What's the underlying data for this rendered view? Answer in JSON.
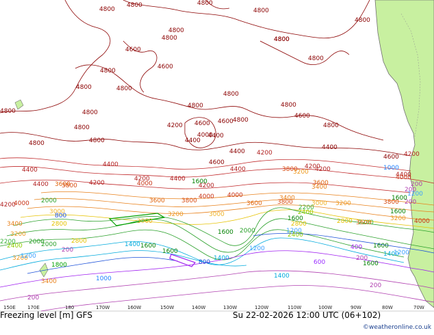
{
  "map": {
    "longitude_labels": [
      "150E",
      "170E",
      "180",
      "170W",
      "160W",
      "150W",
      "140W",
      "130W",
      "120W",
      "110W",
      "100W",
      "90W",
      "80W",
      "70W"
    ],
    "contour_labels": [
      {
        "text": "4800",
        "color": "#8b0000"
      },
      {
        "text": "4800",
        "color": "#8b0000"
      },
      {
        "text": "4800",
        "color": "#8b0000"
      },
      {
        "text": "4800",
        "color": "#8b0000"
      },
      {
        "text": "4800",
        "color": "#8b0000"
      },
      {
        "text": "4800",
        "color": "#8b0000"
      },
      {
        "text": "4800",
        "color": "#8b0000"
      },
      {
        "text": "4800",
        "color": "#8b0000"
      },
      {
        "text": "4800",
        "color": "#8b0000"
      },
      {
        "text": "4800",
        "color": "#8b0000"
      },
      {
        "text": "4800",
        "color": "#8b0000"
      },
      {
        "text": "4800",
        "color": "#8b0000"
      },
      {
        "text": "4600",
        "color": "#8b0000"
      },
      {
        "text": "4600",
        "color": "#8b0000"
      },
      {
        "text": "4800",
        "color": "#8b0000"
      },
      {
        "text": "4800",
        "color": "#8b0000"
      },
      {
        "text": "4800",
        "color": "#8b0000"
      },
      {
        "text": "4800",
        "color": "#8b0000"
      },
      {
        "text": "4800",
        "color": "#8b0000"
      },
      {
        "text": "4800",
        "color": "#8b0000"
      },
      {
        "text": "4800",
        "color": "#8b0000"
      },
      {
        "text": "4800",
        "color": "#8b0000"
      },
      {
        "text": "4600",
        "color": "#8b0000"
      },
      {
        "text": "4800",
        "color": "#8b0000"
      },
      {
        "text": "4800",
        "color": "#8b0000"
      },
      {
        "text": "4200",
        "color": "#8b0000"
      },
      {
        "text": "4400",
        "color": "#8b0000"
      },
      {
        "text": "4800",
        "color": "#8b0000"
      },
      {
        "text": "4400",
        "color": "#8b0000"
      },
      {
        "text": "4600",
        "color": "#8b0000"
      },
      {
        "text": "4000",
        "color": "#8b0000"
      },
      {
        "text": "4400",
        "color": "#8b0000"
      },
      {
        "text": "4600",
        "color": "#8b0000"
      },
      {
        "text": "4400",
        "color": "#8b0000"
      },
      {
        "text": "4600",
        "color": "#8b0000"
      },
      {
        "text": "4400",
        "color": "#b22222"
      },
      {
        "text": "4400",
        "color": "#b22222"
      },
      {
        "text": "4200",
        "color": "#b22222"
      },
      {
        "text": "4200",
        "color": "#b22222"
      },
      {
        "text": "4400",
        "color": "#b22222"
      },
      {
        "text": "4200",
        "color": "#b22222"
      },
      {
        "text": "4200",
        "color": "#b22222"
      },
      {
        "text": "4600",
        "color": "#8b0000"
      },
      {
        "text": "4400",
        "color": "#b22222"
      },
      {
        "text": "4200",
        "color": "#b22222"
      },
      {
        "text": "4000",
        "color": "#c83214"
      },
      {
        "text": "3800",
        "color": "#d84a10"
      },
      {
        "text": "4400",
        "color": "#b22222"
      },
      {
        "text": "4200",
        "color": "#b22222"
      },
      {
        "text": "4400",
        "color": "#b22222"
      },
      {
        "text": "4000",
        "color": "#c83214"
      },
      {
        "text": "4000",
        "color": "#c83214"
      },
      {
        "text": "4200",
        "color": "#b22222"
      },
      {
        "text": "4000",
        "color": "#c83214"
      },
      {
        "text": "3600",
        "color": "#e0640c"
      },
      {
        "text": "4000",
        "color": "#c83214"
      },
      {
        "text": "3800",
        "color": "#d84a10"
      },
      {
        "text": "3600",
        "color": "#e0640c"
      },
      {
        "text": "3800",
        "color": "#d84a10"
      },
      {
        "text": "3200",
        "color": "#ee9a20"
      },
      {
        "text": "3800",
        "color": "#d84a10"
      },
      {
        "text": "3600",
        "color": "#e0640c"
      },
      {
        "text": "3400",
        "color": "#e8801a"
      },
      {
        "text": "3800",
        "color": "#d84a10"
      },
      {
        "text": "3600",
        "color": "#e0640c"
      },
      {
        "text": "3200",
        "color": "#ee9a20"
      },
      {
        "text": "3000",
        "color": "#f0b429"
      },
      {
        "text": "3400",
        "color": "#e8801a"
      },
      {
        "text": "3200",
        "color": "#ee9a20"
      },
      {
        "text": "3000",
        "color": "#f0b429"
      },
      {
        "text": "3400",
        "color": "#e8801a"
      },
      {
        "text": "3200",
        "color": "#ee9a20"
      },
      {
        "text": "2800",
        "color": "#e6c200"
      },
      {
        "text": "2400",
        "color": "#8fce00"
      },
      {
        "text": "2200",
        "color": "#3cb43c"
      },
      {
        "text": "2000",
        "color": "#2aa02a"
      },
      {
        "text": "3000",
        "color": "#f0b429"
      },
      {
        "text": "2800",
        "color": "#e6c200"
      },
      {
        "text": "2400",
        "color": "#8fce00"
      },
      {
        "text": "1600",
        "color": "#008000"
      },
      {
        "text": "3200",
        "color": "#ee9a20"
      },
      {
        "text": "2800",
        "color": "#e6c200"
      },
      {
        "text": "3200",
        "color": "#ee9a20"
      },
      {
        "text": "2000",
        "color": "#2aa02a"
      },
      {
        "text": "1600",
        "color": "#008000"
      },
      {
        "text": "2800",
        "color": "#e6c200"
      },
      {
        "text": "2200",
        "color": "#3cb43c"
      },
      {
        "text": "2000",
        "color": "#2aa02a"
      },
      {
        "text": "3000",
        "color": "#f0b429"
      },
      {
        "text": "1600",
        "color": "#008000"
      },
      {
        "text": "2200",
        "color": "#3cb43c"
      },
      {
        "text": "2000",
        "color": "#2aa02a"
      },
      {
        "text": "800",
        "color": "#1a4fd8"
      },
      {
        "text": "1600",
        "color": "#008000"
      },
      {
        "text": "2400",
        "color": "#8fce00"
      },
      {
        "text": "1600",
        "color": "#008000"
      },
      {
        "text": "1200",
        "color": "#3ca0ff"
      },
      {
        "text": "1400",
        "color": "#00aadd"
      },
      {
        "text": "1600",
        "color": "#008000"
      },
      {
        "text": "1600",
        "color": "#008000"
      },
      {
        "text": "200",
        "color": "#b03fb0"
      },
      {
        "text": "1400",
        "color": "#00aadd"
      },
      {
        "text": "1200",
        "color": "#3ca0ff"
      },
      {
        "text": "1800",
        "color": "#00a000"
      },
      {
        "text": "600",
        "color": "#9b30ff"
      },
      {
        "text": "1400",
        "color": "#00aadd"
      },
      {
        "text": "400",
        "color": "#a020f0"
      },
      {
        "text": "1200",
        "color": "#3ca0ff"
      },
      {
        "text": "800",
        "color": "#1a4fd8"
      },
      {
        "text": "1000",
        "color": "#2080ff"
      },
      {
        "text": "200",
        "color": "#b03fb0"
      },
      {
        "text": "1600",
        "color": "#008000"
      },
      {
        "text": "1400",
        "color": "#00aadd"
      },
      {
        "text": "200",
        "color": "#b03fb0"
      },
      {
        "text": "1200",
        "color": "#3ca0ff"
      },
      {
        "text": "200",
        "color": "#b03fb0"
      },
      {
        "text": "200",
        "color": "#b03fb0"
      },
      {
        "text": "200",
        "color": "#b03fb0"
      },
      {
        "text": "1200",
        "color": "#3ca0ff"
      },
      {
        "text": "200",
        "color": "#b03fb0"
      },
      {
        "text": "1600",
        "color": "#008000"
      },
      {
        "text": "1000",
        "color": "#2080ff"
      },
      {
        "text": "4200",
        "color": "#b22222"
      },
      {
        "text": "4000",
        "color": "#c83214"
      },
      {
        "text": "3600",
        "color": "#e0640c"
      },
      {
        "text": "3400",
        "color": "#e8801a"
      },
      {
        "text": "3800",
        "color": "#d84a10"
      },
      {
        "text": "4400",
        "color": "#b22222"
      },
      {
        "text": "4600",
        "color": "#8b0000"
      },
      {
        "text": "3000",
        "color": "#f0b429"
      },
      {
        "text": "2200",
        "color": "#3cb43c"
      },
      {
        "text": "1200",
        "color": "#3ca0ff"
      }
    ],
    "colors": {
      "ocean": "#ffffff",
      "land": "#c8f0a0",
      "coast": "#707070",
      "dark_red": "#8b0000",
      "accent_credit": "#1a3f8f"
    }
  },
  "footer": {
    "title": "Freezing level [m] GFS",
    "datetime": "Su 22-02-2026 12:00 UTC (06+102)",
    "credit": "©weatheronline.co.uk"
  }
}
